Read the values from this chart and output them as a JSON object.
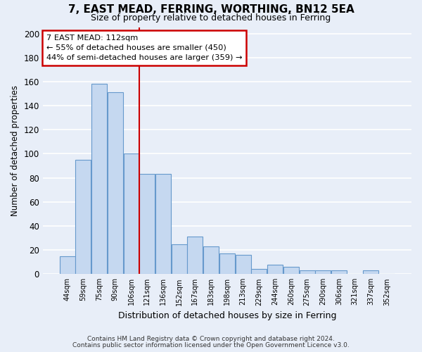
{
  "title": "7, EAST MEAD, FERRING, WORTHING, BN12 5EA",
  "subtitle": "Size of property relative to detached houses in Ferring",
  "xlabel": "Distribution of detached houses by size in Ferring",
  "ylabel": "Number of detached properties",
  "categories": [
    "44sqm",
    "59sqm",
    "75sqm",
    "90sqm",
    "106sqm",
    "121sqm",
    "136sqm",
    "152sqm",
    "167sqm",
    "183sqm",
    "198sqm",
    "213sqm",
    "229sqm",
    "244sqm",
    "260sqm",
    "275sqm",
    "290sqm",
    "306sqm",
    "321sqm",
    "337sqm",
    "352sqm"
  ],
  "values": [
    15,
    95,
    158,
    151,
    100,
    83,
    83,
    25,
    31,
    23,
    17,
    16,
    4,
    8,
    6,
    3,
    3,
    3,
    0,
    3,
    0
  ],
  "bar_color": "#c5d8f0",
  "bar_edge_color": "#6699cc",
  "background_color": "#e8eef8",
  "grid_color": "#ffffff",
  "vline_x": 4.5,
  "vline_color": "#cc0000",
  "annotation_line1": "7 EAST MEAD: 112sqm",
  "annotation_line2": "← 55% of detached houses are smaller (450)",
  "annotation_line3": "44% of semi-detached houses are larger (359) →",
  "ylim": [
    0,
    205
  ],
  "yticks": [
    0,
    20,
    40,
    60,
    80,
    100,
    120,
    140,
    160,
    180,
    200
  ],
  "footnote1": "Contains HM Land Registry data © Crown copyright and database right 2024.",
  "footnote2": "Contains public sector information licensed under the Open Government Licence v3.0."
}
